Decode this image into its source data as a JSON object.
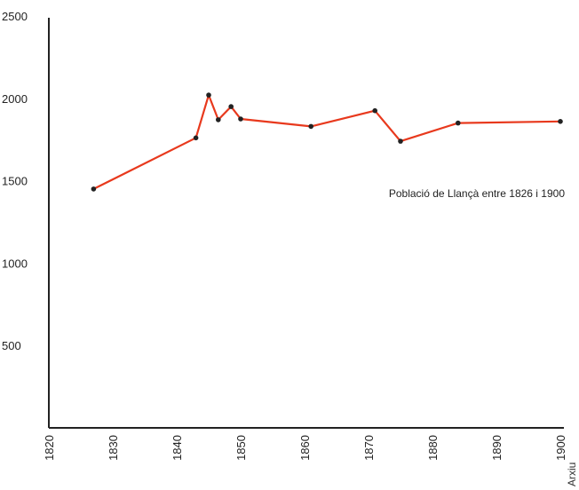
{
  "chart_data": {
    "type": "line",
    "title": "",
    "xlabel": "",
    "ylabel": "",
    "xlim": [
      1820,
      1900
    ],
    "ylim": [
      0,
      2500
    ],
    "x_ticks": [
      1820,
      1830,
      1840,
      1850,
      1860,
      1870,
      1880,
      1890,
      1900
    ],
    "y_ticks": [
      500,
      1000,
      1500,
      2000,
      2500
    ],
    "grid": false,
    "series": [
      {
        "color": "#e8391d",
        "marker_color": "#222222",
        "points": [
          {
            "x": 1827,
            "y": 1450
          },
          {
            "x": 1843,
            "y": 1760
          },
          {
            "x": 1845,
            "y": 2020
          },
          {
            "x": 1846.5,
            "y": 1870
          },
          {
            "x": 1848.5,
            "y": 1950
          },
          {
            "x": 1850,
            "y": 1875
          },
          {
            "x": 1861,
            "y": 1830
          },
          {
            "x": 1871,
            "y": 1925
          },
          {
            "x": 1875,
            "y": 1740
          },
          {
            "x": 1884,
            "y": 1850
          },
          {
            "x": 1900,
            "y": 1860
          }
        ]
      }
    ],
    "annotation": "Població de Llançà entre 1826 i 1900"
  },
  "credit": "Arxiu"
}
